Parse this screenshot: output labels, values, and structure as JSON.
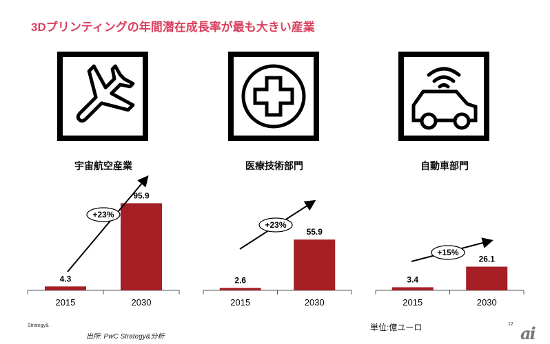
{
  "title": "3Dプリンティングの年間潜在成長率が最も大きい産業",
  "footer": {
    "brand": "Strategy&",
    "source": "出所: PwC Strategy&分析",
    "unit": "単位:億ユーロ",
    "page_number": "12",
    "logo_text": "ai"
  },
  "colors": {
    "title": "#d9405e",
    "bar": "#a51f24"
  },
  "chart_data": [
    {
      "type": "bar",
      "sector": "宇宙航空産業",
      "icon": "airplane-icon",
      "categories": [
        "2015",
        "2030"
      ],
      "values": [
        4.3,
        95.9
      ],
      "value_labels": [
        "4.3",
        "95.9"
      ],
      "growth": "+23%"
    },
    {
      "type": "bar",
      "sector": "医療技術部門",
      "icon": "medical-cross-icon",
      "categories": [
        "2015",
        "2030"
      ],
      "values": [
        2.6,
        55.9
      ],
      "value_labels": [
        "2.6",
        "55.9"
      ],
      "growth": "+23%"
    },
    {
      "type": "bar",
      "sector": "自動車部門",
      "icon": "connected-car-icon",
      "categories": [
        "2015",
        "2030"
      ],
      "values": [
        3.4,
        26.1
      ],
      "value_labels": [
        "3.4",
        "26.1"
      ],
      "growth": "+15%"
    }
  ]
}
